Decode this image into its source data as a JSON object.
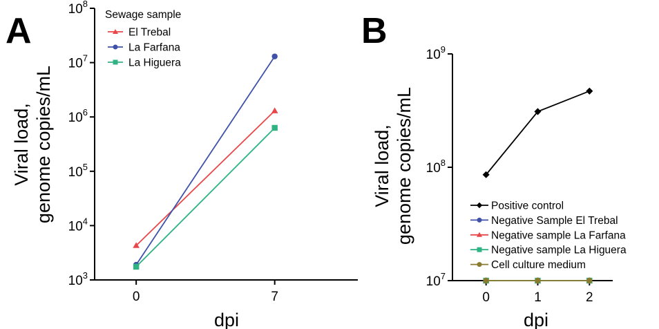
{
  "chart_data": [
    {
      "panel": "A",
      "type": "line",
      "xlabel": "dpi",
      "ylabel": [
        "Viral load,",
        "genome copies/mL"
      ],
      "yscale": "log",
      "ylim": [
        1000,
        100000000
      ],
      "yticks": [
        {
          "value": 1000,
          "base": "10",
          "exp": "3"
        },
        {
          "value": 10000,
          "base": "10",
          "exp": "4"
        },
        {
          "value": 100000,
          "base": "10",
          "exp": "5"
        },
        {
          "value": 1000000,
          "base": "10",
          "exp": "6"
        },
        {
          "value": 10000000,
          "base": "10",
          "exp": "7"
        },
        {
          "value": 100000000,
          "base": "10",
          "exp": "8"
        }
      ],
      "xticks": [
        {
          "value": 0,
          "label": "0"
        },
        {
          "value": 7,
          "label": "7"
        }
      ],
      "legend_title": "Sewage sample",
      "legend_position": "top-left",
      "series": [
        {
          "name": "El Trebal",
          "color": "#e8474a",
          "marker": "triangle",
          "x": [
            0,
            7
          ],
          "y": [
            4300,
            1300000
          ]
        },
        {
          "name": "La Farfana",
          "color": "#3f51a8",
          "marker": "circle",
          "x": [
            0,
            7
          ],
          "y": [
            1900,
            13000000
          ]
        },
        {
          "name": "La Higuera",
          "color": "#2fb383",
          "marker": "square",
          "x": [
            0,
            7
          ],
          "y": [
            1750,
            630000
          ]
        }
      ]
    },
    {
      "panel": "B",
      "type": "line",
      "xlabel": "dpi",
      "ylabel": [
        "Viral load,",
        "genome copies/mL"
      ],
      "yscale": "log",
      "ylim": [
        10000000,
        1000000000
      ],
      "yticks": [
        {
          "value": 10000000,
          "base": "10",
          "exp": "7"
        },
        {
          "value": 100000000,
          "base": "10",
          "exp": "8"
        },
        {
          "value": 1000000000,
          "base": "10",
          "exp": "9"
        }
      ],
      "xticks": [
        {
          "value": 0,
          "label": "0"
        },
        {
          "value": 1,
          "label": "1"
        },
        {
          "value": 2,
          "label": "2"
        }
      ],
      "legend_position": "bottom-left",
      "series": [
        {
          "name": "Positive control",
          "color": "#000000",
          "marker": "diamond",
          "x": [
            0,
            1,
            2
          ],
          "y": [
            86000000,
            310000000,
            470000000
          ]
        },
        {
          "name": "Negative Sample El Trebal",
          "color": "#3f51a8",
          "marker": "circle",
          "x": [
            0,
            1,
            2
          ],
          "y": [
            10000000,
            10000000,
            10000000
          ]
        },
        {
          "name": "Negative sample La Farfana",
          "color": "#e8474a",
          "marker": "triangle",
          "x": [
            0,
            1,
            2
          ],
          "y": [
            10000000,
            10000000,
            10000000
          ]
        },
        {
          "name": "Negative sample La Higuera",
          "color": "#2fb383",
          "marker": "square",
          "x": [
            0,
            1,
            2
          ],
          "y": [
            10000000,
            10000000,
            10000000
          ]
        },
        {
          "name": "Cell culture medium",
          "color": "#8a7a2e",
          "marker": "circle",
          "x": [
            0,
            1,
            2
          ],
          "y": [
            10000000,
            10000000,
            10000000
          ]
        }
      ]
    }
  ]
}
